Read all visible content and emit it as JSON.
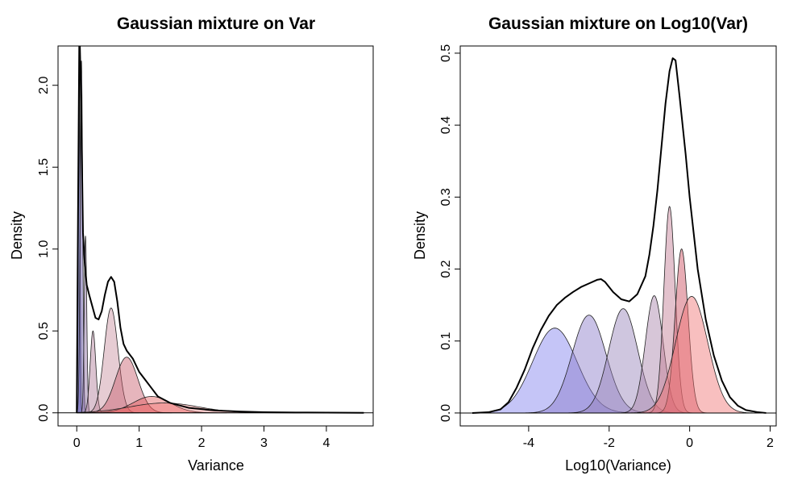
{
  "chart_data": [
    {
      "type": "area",
      "title": "Gaussian mixture on Var",
      "xlabel": "Variance",
      "ylabel": "Density",
      "xlim": [
        -0.3,
        4.75
      ],
      "ylim": [
        -0.08,
        2.24
      ],
      "xticks": [
        "0",
        "1",
        "2",
        "3",
        "4"
      ],
      "yticks": [
        "0.0",
        "0.5",
        "1.0",
        "1.5",
        "2.0"
      ],
      "total_line": {
        "x": [
          0.0,
          0.02,
          0.04,
          0.05,
          0.07,
          0.1,
          0.13,
          0.16,
          0.2,
          0.25,
          0.3,
          0.35,
          0.4,
          0.45,
          0.5,
          0.55,
          0.6,
          0.65,
          0.7,
          0.75,
          0.8,
          0.9,
          1.0,
          1.1,
          1.2,
          1.3,
          1.5,
          1.8,
          2.2,
          2.6,
          3.0,
          3.5,
          4.0,
          4.6
        ],
        "y": [
          0.0,
          1.2,
          2.24,
          2.24,
          1.9,
          1.1,
          0.9,
          0.78,
          0.72,
          0.65,
          0.58,
          0.57,
          0.62,
          0.72,
          0.8,
          0.83,
          0.8,
          0.68,
          0.52,
          0.42,
          0.38,
          0.33,
          0.25,
          0.2,
          0.15,
          0.1,
          0.06,
          0.03,
          0.015,
          0.008,
          0.004,
          0.002,
          0.001,
          0.0
        ]
      },
      "components": [
        {
          "mean": 0.04,
          "height": 2.24,
          "sd": 0.012,
          "color": "#5a5ac8",
          "opacity": 0.55
        },
        {
          "mean": 0.075,
          "height": 2.15,
          "sd": 0.02,
          "color": "#6a5aaa",
          "opacity": 0.5
        },
        {
          "mean": 0.14,
          "height": 1.08,
          "sd": 0.02,
          "color": "#8a6aa0",
          "opacity": 0.45
        },
        {
          "mean": 0.26,
          "height": 0.5,
          "sd": 0.045,
          "color": "#b07a96",
          "opacity": 0.45
        },
        {
          "mean": 0.55,
          "height": 0.64,
          "sd": 0.11,
          "color": "#c08090",
          "opacity": 0.4
        },
        {
          "mean": 0.8,
          "height": 0.34,
          "sd": 0.18,
          "color": "#c85a6a",
          "opacity": 0.45
        },
        {
          "mean": 1.2,
          "height": 0.1,
          "sd": 0.3,
          "color": "#e04a4a",
          "opacity": 0.4
        },
        {
          "mean": 1.4,
          "height": 0.06,
          "sd": 0.55,
          "color": "#f06a6a",
          "opacity": 0.35
        }
      ]
    },
    {
      "type": "area",
      "title": "Gaussian mixture on Log10(Var)",
      "xlabel": "Log10(Variance)",
      "ylabel": "Density",
      "xlim": [
        -5.7,
        2.15
      ],
      "ylim": [
        -0.018,
        0.51
      ],
      "xticks": [
        "-4",
        "-2",
        "0",
        "2"
      ],
      "yticks": [
        "0.0",
        "0.1",
        "0.2",
        "0.3",
        "0.4",
        "0.5"
      ],
      "total_line": {
        "x": [
          -5.4,
          -5.0,
          -4.7,
          -4.5,
          -4.3,
          -4.1,
          -3.9,
          -3.7,
          -3.5,
          -3.3,
          -3.1,
          -2.9,
          -2.7,
          -2.5,
          -2.3,
          -2.2,
          -2.1,
          -1.9,
          -1.7,
          -1.5,
          -1.3,
          -1.1,
          -1.0,
          -0.9,
          -0.8,
          -0.7,
          -0.6,
          -0.5,
          -0.42,
          -0.35,
          -0.25,
          -0.1,
          0.0,
          0.2,
          0.4,
          0.6,
          0.8,
          1.0,
          1.2,
          1.4,
          1.7,
          1.9
        ],
        "y": [
          0.0,
          0.001,
          0.005,
          0.015,
          0.035,
          0.06,
          0.09,
          0.115,
          0.135,
          0.15,
          0.16,
          0.168,
          0.175,
          0.18,
          0.185,
          0.186,
          0.182,
          0.168,
          0.158,
          0.155,
          0.165,
          0.19,
          0.22,
          0.26,
          0.31,
          0.37,
          0.43,
          0.475,
          0.493,
          0.49,
          0.44,
          0.36,
          0.3,
          0.2,
          0.13,
          0.08,
          0.045,
          0.022,
          0.01,
          0.004,
          0.001,
          0.0
        ]
      },
      "components": [
        {
          "mean": -3.35,
          "height": 0.118,
          "sd": 0.55,
          "color": "#8c8cf0",
          "opacity": 0.5
        },
        {
          "mean": -2.5,
          "height": 0.136,
          "sd": 0.42,
          "color": "#8878c8",
          "opacity": 0.45
        },
        {
          "mean": -1.65,
          "height": 0.145,
          "sd": 0.36,
          "color": "#9480b8",
          "opacity": 0.45
        },
        {
          "mean": -0.88,
          "height": 0.163,
          "sd": 0.22,
          "color": "#a680a8",
          "opacity": 0.45
        },
        {
          "mean": -0.5,
          "height": 0.287,
          "sd": 0.14,
          "color": "#c07890",
          "opacity": 0.45
        },
        {
          "mean": -0.2,
          "height": 0.228,
          "sd": 0.16,
          "color": "#d05a6a",
          "opacity": 0.5
        },
        {
          "mean": 0.05,
          "height": 0.162,
          "sd": 0.4,
          "color": "#f07070",
          "opacity": 0.45
        }
      ]
    }
  ]
}
